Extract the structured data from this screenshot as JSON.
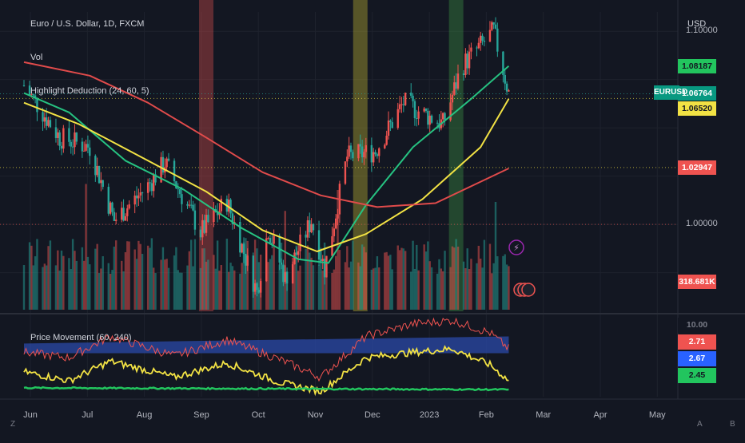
{
  "legends": {
    "main": "Euro / U.S. Dollar, 1D, FXCM",
    "vol": "Vol",
    "indicator": "Highlight Deduction (24, 60, 5)",
    "sub": "Price Movement (60, 240)"
  },
  "currency_label": "USD",
  "symbol_tag": "EURUSD",
  "corner_left": "Z",
  "corner_mid": "A",
  "corner_right": "B",
  "colors": {
    "background": "#131722",
    "up": "#ef5350",
    "down": "#26a69a",
    "ma_green": "#26c281",
    "ma_yellow": "#f2e244",
    "ma_red": "#e14b4b",
    "band_blue": "#2b4aa8"
  },
  "price_axis": {
    "labels": [
      "1.10000",
      "1.00000"
    ],
    "tags": [
      {
        "text": "1.08187",
        "bg": "#22c55e",
        "fg": "#131722",
        "value": 1.08187
      },
      {
        "text": "1.06764",
        "bg": "#089981",
        "fg": "#ffffff",
        "value": 1.06764
      },
      {
        "text": "1.06520",
        "bg": "#f2e244",
        "fg": "#131722",
        "value": 1.0652
      },
      {
        "text": "1.02947",
        "bg": "#ef5350",
        "fg": "#ffffff",
        "value": 1.02947
      },
      {
        "text": "318.681K",
        "bg": "#ef5350",
        "fg": "#ffffff",
        "value": 318.681
      }
    ]
  },
  "sub_axis": {
    "tags": [
      {
        "text": "10.00",
        "bg": "#131722",
        "fg": "#787b86",
        "value": 10
      },
      {
        "text": "2.71",
        "bg": "#ef5350",
        "fg": "#ffffff",
        "value": 2.71
      },
      {
        "text": "2.67",
        "bg": "#2962ff",
        "fg": "#ffffff",
        "value": 2.67
      },
      {
        "text": "2.45",
        "bg": "#22c55e",
        "fg": "#131722",
        "value": 2.45
      }
    ]
  },
  "time_axis": [
    "Jun",
    "Jul",
    "Aug",
    "Sep",
    "Oct",
    "Nov",
    "Dec",
    "2023",
    "Feb",
    "Mar",
    "Apr",
    "May"
  ],
  "chart_data": {
    "type": "candlestick",
    "title": "Euro / U.S. Dollar, 1D, FXCM",
    "ylabel": "USD",
    "ylim": [
      0.955,
      1.11
    ],
    "x_range": [
      "2022-05-27",
      "2023-05-10"
    ],
    "highlight_bands": [
      {
        "date": "2022-09-01",
        "color": "#ef5350"
      },
      {
        "date": "2022-11-22",
        "color": "#d8c934"
      },
      {
        "date": "2023-01-12",
        "color": "#43a047"
      }
    ],
    "price_path": [
      {
        "x": "2022-05-27",
        "y": 1.072
      },
      {
        "x": "2022-06-15",
        "y": 1.045
      },
      {
        "x": "2022-07-01",
        "y": 1.04
      },
      {
        "x": "2022-07-14",
        "y": 1.002
      },
      {
        "x": "2022-08-01",
        "y": 1.02
      },
      {
        "x": "2022-08-10",
        "y": 1.032
      },
      {
        "x": "2022-08-29",
        "y": 0.996
      },
      {
        "x": "2022-09-12",
        "y": 1.012
      },
      {
        "x": "2022-09-28",
        "y": 0.965
      },
      {
        "x": "2022-10-04",
        "y": 0.998
      },
      {
        "x": "2022-10-13",
        "y": 0.972
      },
      {
        "x": "2022-10-27",
        "y": 1.002
      },
      {
        "x": "2022-11-03",
        "y": 0.977
      },
      {
        "x": "2022-11-15",
        "y": 1.035
      },
      {
        "x": "2022-11-30",
        "y": 1.038
      },
      {
        "x": "2022-12-15",
        "y": 1.063
      },
      {
        "x": "2023-01-05",
        "y": 1.052
      },
      {
        "x": "2023-01-15",
        "y": 1.082
      },
      {
        "x": "2023-02-01",
        "y": 1.1
      },
      {
        "x": "2023-02-09",
        "y": 1.068
      }
    ],
    "moving_averages": [
      {
        "color": "#26c281",
        "points": [
          {
            "x": "2022-05-27",
            "y": 1.068
          },
          {
            "x": "2022-06-20",
            "y": 1.058
          },
          {
            "x": "2022-07-20",
            "y": 1.033
          },
          {
            "x": "2022-08-20",
            "y": 1.018
          },
          {
            "x": "2022-09-20",
            "y": 0.998
          },
          {
            "x": "2022-10-20",
            "y": 0.982
          },
          {
            "x": "2022-11-05",
            "y": 0.98
          },
          {
            "x": "2022-11-25",
            "y": 1.01
          },
          {
            "x": "2022-12-20",
            "y": 1.04
          },
          {
            "x": "2023-01-20",
            "y": 1.065
          },
          {
            "x": "2023-02-09",
            "y": 1.082
          }
        ]
      },
      {
        "color": "#f2e244",
        "points": [
          {
            "x": "2022-05-27",
            "y": 1.063
          },
          {
            "x": "2022-06-25",
            "y": 1.052
          },
          {
            "x": "2022-08-01",
            "y": 1.033
          },
          {
            "x": "2022-09-01",
            "y": 1.017
          },
          {
            "x": "2022-10-01",
            "y": 0.997
          },
          {
            "x": "2022-10-30",
            "y": 0.986
          },
          {
            "x": "2022-11-25",
            "y": 0.995
          },
          {
            "x": "2022-12-25",
            "y": 1.013
          },
          {
            "x": "2023-01-25",
            "y": 1.04
          },
          {
            "x": "2023-02-09",
            "y": 1.065
          }
        ]
      },
      {
        "color": "#e14b4b",
        "points": [
          {
            "x": "2022-05-27",
            "y": 1.084
          },
          {
            "x": "2022-07-01",
            "y": 1.077
          },
          {
            "x": "2022-08-01",
            "y": 1.063
          },
          {
            "x": "2022-09-01",
            "y": 1.045
          },
          {
            "x": "2022-10-01",
            "y": 1.027
          },
          {
            "x": "2022-11-01",
            "y": 1.015
          },
          {
            "x": "2022-12-01",
            "y": 1.009
          },
          {
            "x": "2023-01-01",
            "y": 1.011
          },
          {
            "x": "2023-02-09",
            "y": 1.029
          }
        ]
      }
    ],
    "volume": {
      "ylim": [
        0,
        1000
      ],
      "typical": [
        120,
        240
      ],
      "spikes": [
        {
          "x": "2022-06-29",
          "y": 420
        },
        {
          "x": "2022-10-13",
          "y": 330
        },
        {
          "x": "2022-11-10",
          "y": 400
        },
        {
          "x": "2023-02-02",
          "y": 360
        }
      ]
    },
    "sub_pane": {
      "title": "Price Movement (60, 240)",
      "ylim": [
        0,
        4.5
      ],
      "band": {
        "lower": 2.45,
        "upper_start": 3.0,
        "upper_end": 3.4
      },
      "red_line": [
        {
          "x": "2022-05-27",
          "y": 2.5
        },
        {
          "x": "2022-06-20",
          "y": 2.2
        },
        {
          "x": "2022-07-12",
          "y": 3.4
        },
        {
          "x": "2022-08-15",
          "y": 2.3
        },
        {
          "x": "2022-09-12",
          "y": 3.2
        },
        {
          "x": "2022-10-10",
          "y": 2.1
        },
        {
          "x": "2022-11-01",
          "y": 1.1
        },
        {
          "x": "2022-11-25",
          "y": 3.4
        },
        {
          "x": "2022-12-20",
          "y": 4.1
        },
        {
          "x": "2023-01-10",
          "y": 4.3
        },
        {
          "x": "2023-01-30",
          "y": 3.6
        },
        {
          "x": "2023-02-09",
          "y": 2.71
        }
      ],
      "yellow_line": [
        {
          "x": "2022-05-27",
          "y": 1.4
        },
        {
          "x": "2022-06-20",
          "y": 0.9
        },
        {
          "x": "2022-07-12",
          "y": 2.0
        },
        {
          "x": "2022-08-15",
          "y": 1.1
        },
        {
          "x": "2022-09-12",
          "y": 1.9
        },
        {
          "x": "2022-10-10",
          "y": 0.8
        },
        {
          "x": "2022-11-01",
          "y": 0.3
        },
        {
          "x": "2022-11-25",
          "y": 2.2
        },
        {
          "x": "2022-12-20",
          "y": 2.5
        },
        {
          "x": "2023-01-10",
          "y": 2.7
        },
        {
          "x": "2023-01-30",
          "y": 1.8
        },
        {
          "x": "2023-02-09",
          "y": 0.9
        }
      ],
      "green_line": [
        {
          "x": "2022-05-27",
          "y": 0.5
        },
        {
          "x": "2023-02-09",
          "y": 0.4
        }
      ]
    }
  }
}
